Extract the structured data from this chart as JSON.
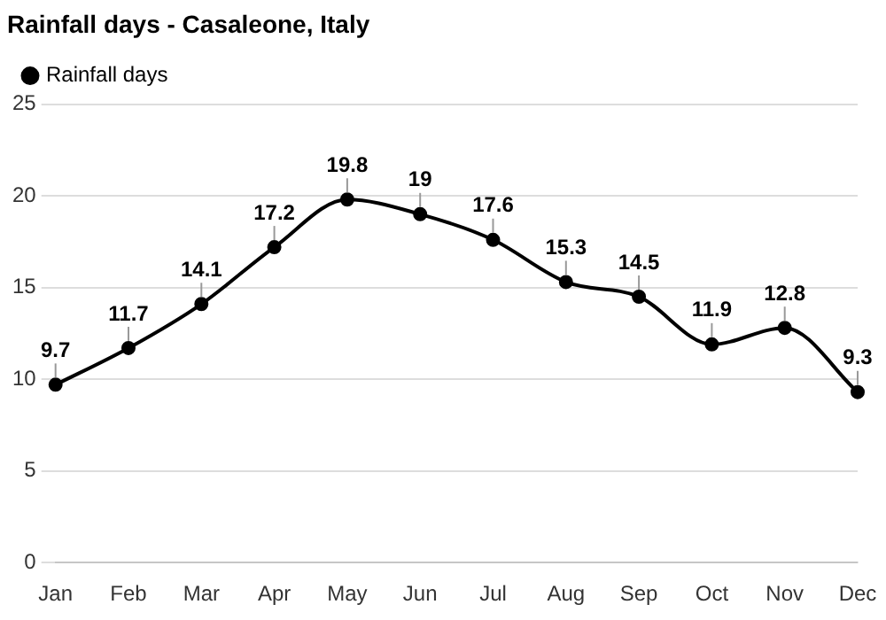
{
  "chart_data": {
    "type": "line",
    "title": "Rainfall days - Casaleone, Italy",
    "categories": [
      "Jan",
      "Feb",
      "Mar",
      "Apr",
      "May",
      "Jun",
      "Jul",
      "Aug",
      "Sep",
      "Oct",
      "Nov",
      "Dec"
    ],
    "series": [
      {
        "name": "Rainfall days",
        "color": "#000000",
        "values": [
          9.7,
          11.7,
          14.1,
          17.2,
          19.8,
          19,
          17.6,
          15.3,
          14.5,
          11.9,
          12.8,
          9.3
        ]
      }
    ],
    "ylim": [
      0,
      25
    ],
    "yticks": [
      0,
      5,
      10,
      15,
      20,
      25
    ],
    "grid": "y",
    "legend": "top left",
    "marker": "circle",
    "line_style": "solid",
    "data_labels": true
  }
}
